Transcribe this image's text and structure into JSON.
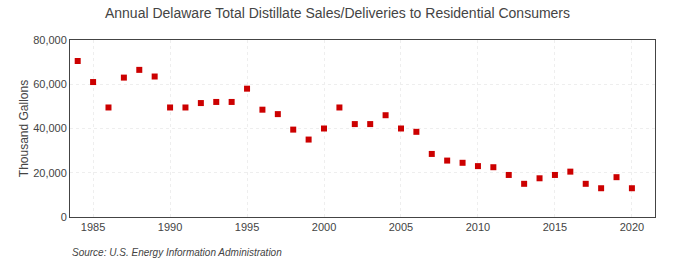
{
  "chart_data": {
    "type": "scatter",
    "title": "Annual Delaware Total Distillate Sales/Deliveries to Residential Consumers",
    "ylabel": "Thousand Gallons",
    "annotations": [
      "Source: U.S. Energy Information Administration"
    ],
    "x": [
      1984,
      1985,
      1986,
      1987,
      1988,
      1989,
      1990,
      1991,
      1992,
      1993,
      1994,
      1995,
      1996,
      1997,
      1998,
      1999,
      2000,
      2001,
      2002,
      2003,
      2004,
      2005,
      2006,
      2007,
      2008,
      2009,
      2010,
      2011,
      2012,
      2013,
      2014,
      2015,
      2016,
      2017,
      2018,
      2019,
      2020
    ],
    "values": [
      70500,
      61000,
      49500,
      63000,
      66500,
      63500,
      49500,
      49500,
      51500,
      52000,
      52000,
      58000,
      48500,
      46500,
      39500,
      35000,
      40000,
      49500,
      42000,
      42000,
      46000,
      40000,
      38500,
      28500,
      25500,
      24500,
      23000,
      22500,
      19000,
      15000,
      17500,
      19000,
      20500,
      15000,
      13000,
      18000,
      13000
    ],
    "color": "#cc0000",
    "marker": "square",
    "xlim": [
      1983.5,
      2021.5
    ],
    "xticks": [
      1985,
      1990,
      1995,
      2000,
      2005,
      2010,
      2015,
      2020
    ],
    "ylim": [
      0,
      80000
    ],
    "yticks": [
      0,
      {
        "value": 20000,
        "label": "20,000"
      },
      {
        "value": 40000,
        "label": "40,000"
      },
      {
        "value": 60000,
        "label": "60,000"
      },
      {
        "value": 80000,
        "label": "80,000"
      }
    ],
    "grid": true
  }
}
